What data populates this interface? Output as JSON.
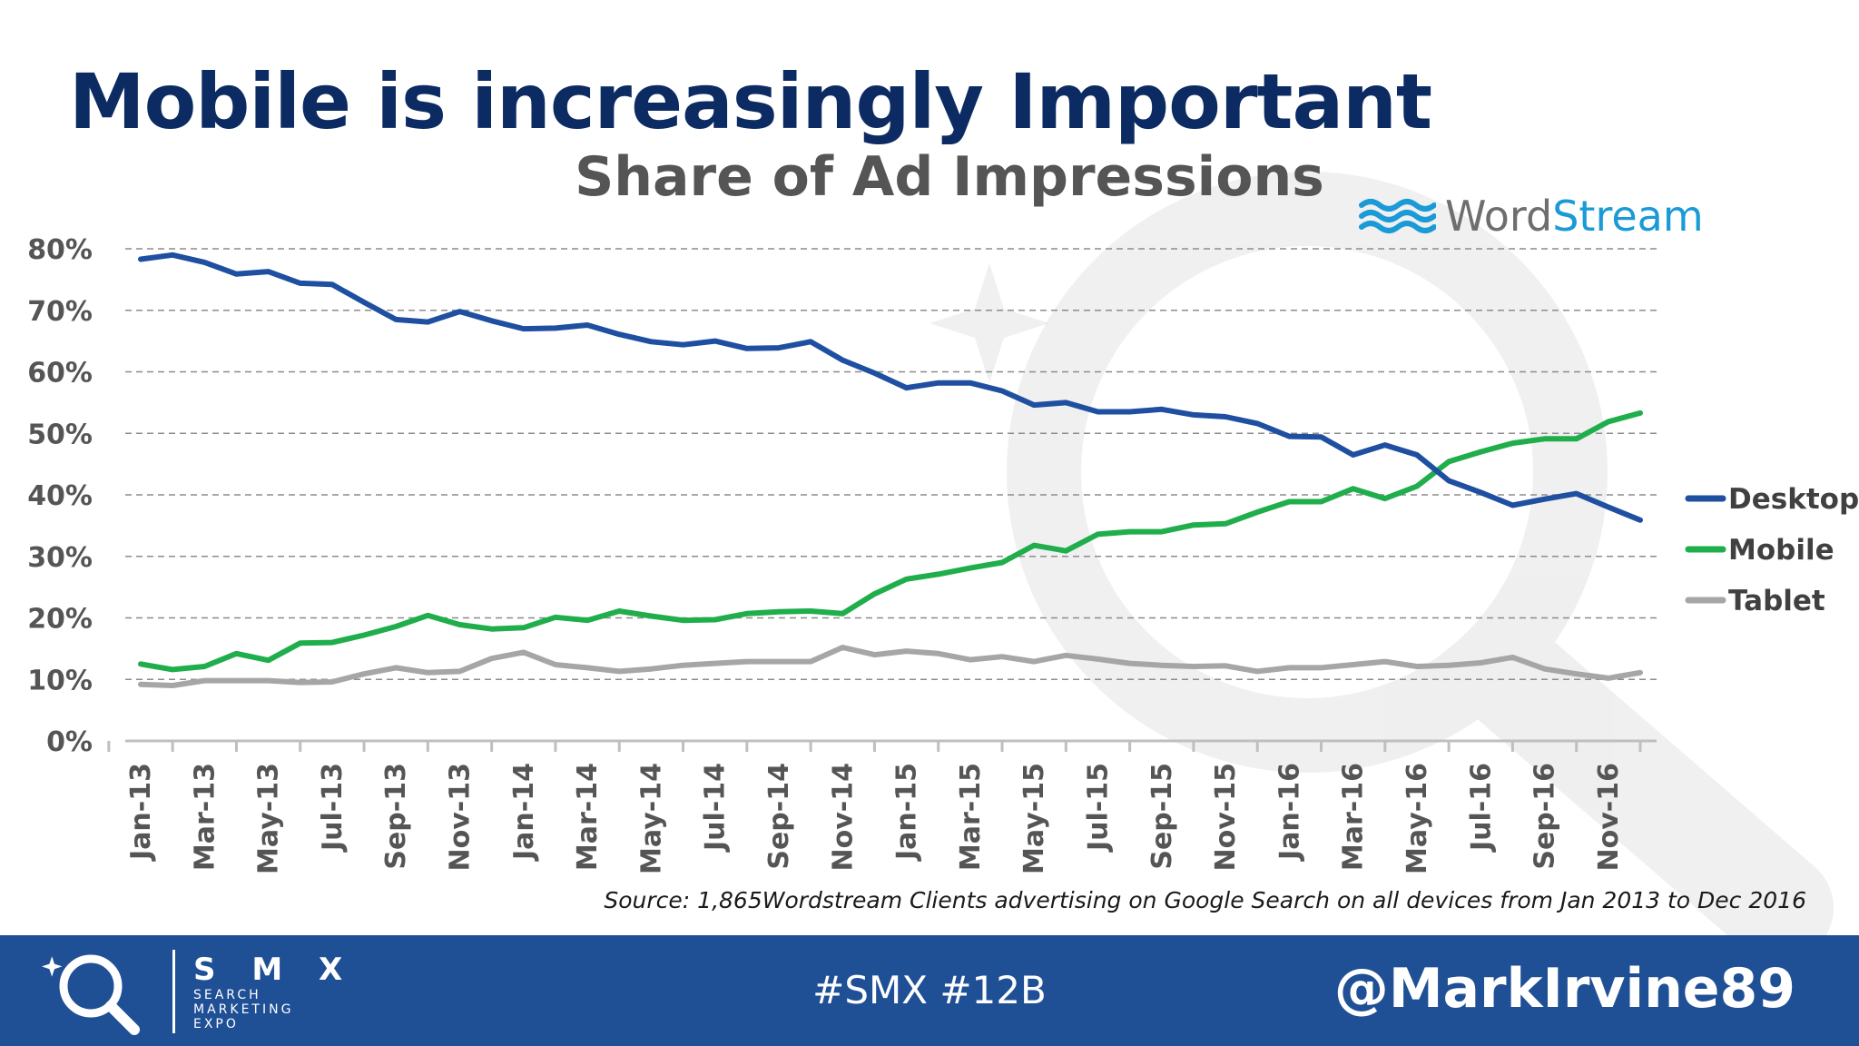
{
  "slide": {
    "title": "Mobile is increasingly Important",
    "source": "Source: 1,865Wordstream Clients advertising on Google Search on all devices from Jan 2013 to Dec 2016"
  },
  "logo": {
    "word": "Word",
    "accent": "Stream"
  },
  "footer": {
    "brand": "S M X",
    "brand_lines": [
      "SEARCH",
      "MARKETING",
      "EXPO"
    ],
    "hashtag": "#SMX #12B",
    "handle": "@MarkIrvine89"
  },
  "colors": {
    "title": "#0d2b63",
    "subtitle": "#555555",
    "footer": "#1f4f95",
    "desktop": "#1f4fa0",
    "mobile": "#1fae4b",
    "tablet": "#a6a6a6",
    "logo_accent": "#1a9ad6"
  },
  "chart_data": {
    "type": "line",
    "title": "Share of Ad Impressions",
    "xlabel": "",
    "ylabel": "",
    "ylim": [
      0,
      80
    ],
    "y_ticks": [
      "0%",
      "10%",
      "20%",
      "30%",
      "40%",
      "50%",
      "60%",
      "70%",
      "80%"
    ],
    "x": [
      "Jan-13",
      "Feb-13",
      "Mar-13",
      "Apr-13",
      "May-13",
      "Jun-13",
      "Jul-13",
      "Aug-13",
      "Sep-13",
      "Oct-13",
      "Nov-13",
      "Dec-13",
      "Jan-14",
      "Feb-14",
      "Mar-14",
      "Apr-14",
      "May-14",
      "Jun-14",
      "Jul-14",
      "Aug-14",
      "Sep-14",
      "Oct-14",
      "Nov-14",
      "Dec-14",
      "Jan-15",
      "Feb-15",
      "Mar-15",
      "Apr-15",
      "May-15",
      "Jun-15",
      "Jul-15",
      "Aug-15",
      "Sep-15",
      "Oct-15",
      "Nov-15",
      "Dec-15",
      "Jan-16",
      "Feb-16",
      "Mar-16",
      "Apr-16",
      "May-16",
      "Jun-16",
      "Jul-16",
      "Aug-16",
      "Sep-16",
      "Oct-16",
      "Nov-16",
      "Dec-16"
    ],
    "x_tick_labels": [
      "Jan-13",
      "Mar-13",
      "May-13",
      "Jul-13",
      "Sep-13",
      "Nov-13",
      "Jan-14",
      "Mar-14",
      "May-14",
      "Jul-14",
      "Sep-14",
      "Nov-14",
      "Jan-15",
      "Mar-15",
      "May-15",
      "Jul-15",
      "Sep-15",
      "Nov-15",
      "Jan-16",
      "Mar-16",
      "May-16",
      "Jul-16",
      "Sep-16",
      "Nov-16"
    ],
    "grid": true,
    "legend": "right",
    "series": [
      {
        "name": "Desktop",
        "color": "#1f4fa0",
        "values": [
          78.3,
          79.0,
          77.8,
          75.9,
          76.3,
          74.4,
          74.2,
          71.3,
          68.5,
          68.1,
          69.8,
          68.3,
          67.0,
          67.1,
          67.6,
          66.1,
          64.9,
          64.4,
          65.0,
          63.8,
          63.9,
          64.9,
          61.9,
          59.8,
          57.4,
          58.2,
          58.2,
          56.9,
          54.6,
          55.0,
          53.5,
          53.5,
          53.9,
          53.0,
          52.7,
          51.6,
          49.5,
          49.4,
          46.5,
          48.1,
          46.5,
          42.3,
          40.4,
          38.3,
          39.3,
          40.2,
          38.0,
          35.9
        ]
      },
      {
        "name": "Mobile",
        "color": "#1fae4b",
        "values": [
          12.5,
          11.6,
          12.1,
          14.2,
          13.1,
          15.9,
          16.0,
          17.2,
          18.6,
          20.4,
          18.9,
          18.2,
          18.4,
          20.1,
          19.6,
          21.1,
          20.3,
          19.6,
          19.7,
          20.7,
          21.0,
          21.1,
          20.7,
          23.9,
          26.3,
          27.1,
          28.1,
          29.0,
          31.8,
          30.9,
          33.6,
          34.0,
          34.0,
          35.1,
          35.3,
          37.2,
          38.9,
          38.9,
          41.0,
          39.4,
          41.4,
          45.4,
          47.0,
          48.4,
          49.1,
          49.1,
          51.9,
          53.3
        ]
      },
      {
        "name": "Tablet",
        "color": "#a6a6a6",
        "values": [
          9.2,
          9.0,
          9.8,
          9.8,
          9.8,
          9.5,
          9.6,
          10.9,
          11.9,
          11.1,
          11.3,
          13.4,
          14.4,
          12.4,
          11.9,
          11.3,
          11.7,
          12.3,
          12.6,
          12.9,
          12.9,
          12.9,
          15.2,
          14.0,
          14.6,
          14.2,
          13.2,
          13.7,
          12.9,
          13.9,
          13.3,
          12.6,
          12.3,
          12.1,
          12.2,
          11.3,
          11.9,
          11.9,
          12.4,
          12.9,
          12.1,
          12.3,
          12.7,
          13.6,
          11.7,
          10.9,
          10.2,
          11.1
        ]
      }
    ]
  }
}
